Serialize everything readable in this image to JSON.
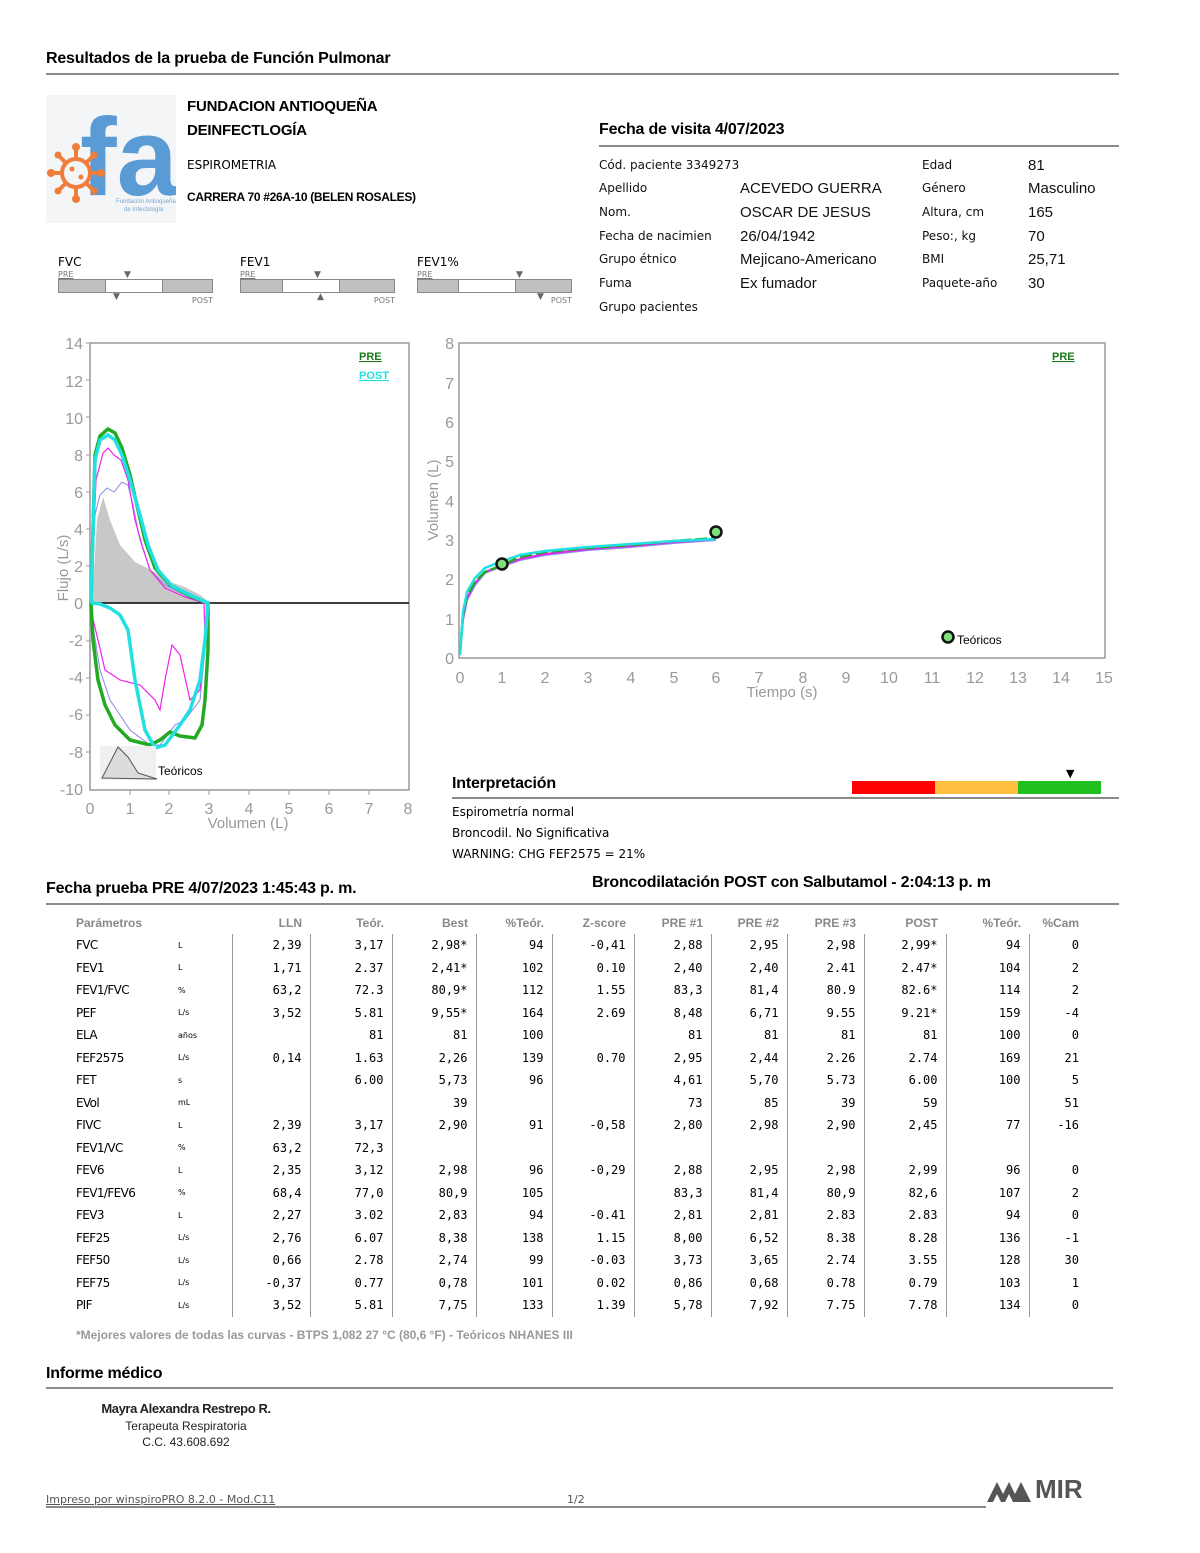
{
  "report": {
    "title": "Resultados de la prueba de Función Pulmonar"
  },
  "institution": {
    "name_line1": "FUNDACION ANTIOQUEÑA",
    "name_line2": "DEINFECTLOGÍA",
    "service": "ESPIROMETRIA",
    "address": "CARRERA 70 #26A-10 (BELEN ROSALES)",
    "logo_text": "fai",
    "logo_caption": "Fundación Antioqueña de Infectología"
  },
  "visit": {
    "title": "Fecha de visita 4/07/2023",
    "patient_code": "Cód. paciente 3349273",
    "left_fields": [
      {
        "label": "Apellido",
        "value": "ACEVEDO GUERRA"
      },
      {
        "label": "Nom.",
        "value": "OSCAR DE JESUS"
      },
      {
        "label": "Fecha de nacimien",
        "value": "26/04/1942"
      },
      {
        "label": "Grupo étnico",
        "value": "Mejicano-Americano"
      },
      {
        "label": "Fuma",
        "value": "Ex fumador"
      },
      {
        "label": "Grupo pacientes",
        "value": ""
      }
    ],
    "right_fields": [
      {
        "label": "Edad",
        "value": "81"
      },
      {
        "label": "Género",
        "value": "Masculino"
      },
      {
        "label": "Altura, cm",
        "value": "165"
      },
      {
        "label": "Peso:, kg",
        "value": "70"
      },
      {
        "label": "BMI",
        "value": "25,71"
      },
      {
        "label": "Paquete-año",
        "value": "30"
      }
    ]
  },
  "mini_bars": [
    {
      "name": "FVC",
      "pre_label": "PRE",
      "post_label": "POST"
    },
    {
      "name": "FEV1",
      "pre_label": "PRE",
      "post_label": "POST"
    },
    {
      "name": "FEV1%",
      "pre_label": "PRE",
      "post_label": "POST"
    }
  ],
  "chart_data": [
    {
      "type": "line",
      "title": "Flujo-Volumen",
      "xlabel": "Volumen (L)",
      "ylabel": "Flujo (L/s)",
      "xlim": [
        0,
        8
      ],
      "ylim": [
        -10,
        14
      ],
      "x_ticks": [
        "0",
        "1",
        "2",
        "3",
        "4",
        "5",
        "6",
        "7",
        "8"
      ],
      "y_ticks": [
        "14",
        "12",
        "10",
        "8",
        "6",
        "4",
        "2",
        "0",
        "-2",
        "-4",
        "-6",
        "-8",
        "-10"
      ],
      "legend": [
        "PRE",
        "POST"
      ],
      "annotation": "Teóricos",
      "series": [
        {
          "name": "PRE best (green)",
          "color": "#22aa22",
          "x": [
            0,
            0.1,
            0.2,
            0.35,
            0.5,
            0.7,
            1.0,
            1.3,
            1.6,
            2.0,
            2.5,
            2.9,
            3.0
          ],
          "y": [
            0,
            8.5,
            9.3,
            9.4,
            9.0,
            8.0,
            5.5,
            3.5,
            2.3,
            1.3,
            0.5,
            0.1,
            0
          ]
        },
        {
          "name": "POST (cyan)",
          "color": "#22e0e0",
          "x": [
            0,
            0.1,
            0.2,
            0.35,
            0.5,
            0.7,
            1.0,
            1.3,
            1.6,
            2.0,
            2.5,
            2.9,
            3.0
          ],
          "y": [
            0,
            8.2,
            9.0,
            9.1,
            8.8,
            7.8,
            5.7,
            3.8,
            2.5,
            1.4,
            0.6,
            0.1,
            0
          ]
        },
        {
          "name": "PRE #2 (magenta)",
          "color": "#ee22ee",
          "x": [
            0,
            0.1,
            0.3,
            0.5,
            0.7,
            1.0,
            1.3,
            1.8,
            2.4,
            2.9
          ],
          "y": [
            0,
            7.5,
            8.4,
            8.0,
            7.8,
            6.2,
            3.7,
            2.0,
            0.6,
            0
          ]
        },
        {
          "name": "PRE #1 (blue)",
          "color": "#8888ee",
          "x": [
            0,
            0.1,
            0.3,
            0.5,
            0.8,
            1.0,
            1.3,
            1.8,
            2.4,
            2.9
          ],
          "y": [
            0,
            5.8,
            6.1,
            6.0,
            6.5,
            6.3,
            3.8,
            2.0,
            0.6,
            0
          ]
        },
        {
          "name": "Teóricos",
          "color": "#c8c8c8",
          "x": [
            0,
            0.3,
            0.5,
            1.0,
            1.5,
            2.0,
            2.5,
            3.0
          ],
          "y": [
            0,
            5.8,
            4.3,
            3.4,
            2.4,
            1.6,
            0.8,
            0
          ]
        }
      ]
    },
    {
      "type": "line",
      "title": "Volumen-Tiempo",
      "xlabel": "Tiempo (s)",
      "ylabel": "Volumen (L)",
      "xlim": [
        0,
        15
      ],
      "ylim": [
        0,
        8
      ],
      "x_ticks": [
        "0",
        "1",
        "2",
        "3",
        "4",
        "5",
        "6",
        "7",
        "8",
        "9",
        "10",
        "11",
        "12",
        "13",
        "14",
        "15"
      ],
      "y_ticks": [
        "8",
        "7",
        "6",
        "5",
        "4",
        "3",
        "2",
        "1",
        "0"
      ],
      "legend": [
        "PRE"
      ],
      "annotation": "Teóricos",
      "series": [
        {
          "name": "PRE/POST curves",
          "color": "#22e0e0",
          "x": [
            0,
            0.1,
            0.2,
            0.4,
            0.6,
            1.0,
            1.5,
            2.0,
            3.0,
            4.0,
            5.0,
            6.0
          ],
          "y": [
            0,
            1.0,
            1.5,
            1.95,
            2.2,
            2.45,
            2.55,
            2.65,
            2.78,
            2.85,
            2.93,
            3.0
          ]
        },
        {
          "name": "Teóricos points",
          "color": "#7de07d",
          "x": [
            1,
            6
          ],
          "y": [
            2.37,
            3.17
          ]
        }
      ]
    }
  ],
  "interpretation": {
    "title": "Interpretación",
    "lines": [
      "Espirometría normal",
      "Broncodil. No Significativa",
      "WARNING: CHG FEF2575 = 21%"
    ],
    "scale_colors": [
      "#ff0000",
      "#ffbf3f",
      "#1fbf1f"
    ]
  },
  "bronchodilation": {
    "title": "Broncodilatación POST con Salbutamol - 2:04:13 p. m"
  },
  "test": {
    "title": "Fecha prueba PRE 4/07/2023   1:45:43 p. m."
  },
  "table": {
    "headers": [
      "Parámetros",
      "",
      "LLN",
      "Teór.",
      "Best",
      "%Teór.",
      "Z-score",
      "PRE #1",
      "PRE #2",
      "PRE #3",
      "POST",
      "%Teór.",
      "%Cam"
    ],
    "rows": [
      [
        "FVC",
        "L",
        "2,39",
        "3,17",
        "2,98*",
        "94",
        "-0,41",
        "2,88",
        "2,95",
        "2,98",
        "2,99*",
        "94",
        "0"
      ],
      [
        "FEV1",
        "L",
        "1,71",
        "2.37",
        "2,41*",
        "102",
        "0.10",
        "2,40",
        "2,40",
        "2.41",
        "2.47*",
        "104",
        "2"
      ],
      [
        "FEV1/FVC",
        "%",
        "63,2",
        "72.3",
        "80,9*",
        "112",
        "1.55",
        "83,3",
        "81,4",
        "80.9",
        "82.6*",
        "114",
        "2"
      ],
      [
        "PEF",
        "L/s",
        "3,52",
        "5.81",
        "9,55*",
        "164",
        "2.69",
        "8,48",
        "6,71",
        "9.55",
        "9.21*",
        "159",
        "-4"
      ],
      [
        "ELA",
        "años",
        "",
        "81",
        "81",
        "100",
        "",
        "81",
        "81",
        "81",
        "81",
        "100",
        "0"
      ],
      [
        "FEF2575",
        "L/s",
        "0,14",
        "1.63",
        "2,26",
        "139",
        "0.70",
        "2,95",
        "2,44",
        "2.26",
        "2.74",
        "169",
        "21"
      ],
      [
        "FET",
        "s",
        "",
        "6.00",
        "5,73",
        "96",
        "",
        "4,61",
        "5,70",
        "5.73",
        "6.00",
        "100",
        "5"
      ],
      [
        "EVol",
        "mL",
        "",
        "",
        "39",
        "",
        "",
        "73",
        "85",
        "39",
        "59",
        "",
        "51"
      ],
      [
        "FIVC",
        "L",
        "2,39",
        "3,17",
        "2,90",
        "91",
        "-0,58",
        "2,80",
        "2,98",
        "2,90",
        "2,45",
        "77",
        "-16"
      ],
      [
        "FEV1/VC",
        "%",
        "63,2",
        "72,3",
        "",
        "",
        "",
        "",
        "",
        "",
        "",
        "",
        ""
      ],
      [
        "FEV6",
        "L",
        "2,35",
        "3,12",
        "2,98",
        "96",
        "-0,29",
        "2,88",
        "2,95",
        "2,98",
        "2,99",
        "96",
        "0"
      ],
      [
        "FEV1/FEV6",
        "%",
        "68,4",
        "77,0",
        "80,9",
        "105",
        "",
        "83,3",
        "81,4",
        "80,9",
        "82,6",
        "107",
        "2"
      ],
      [
        "FEV3",
        "L",
        "2,27",
        "3.02",
        "2,83",
        "94",
        "-0.41",
        "2,81",
        "2,81",
        "2.83",
        "2.83",
        "94",
        "0"
      ],
      [
        "FEF25",
        "L/s",
        "2,76",
        "6.07",
        "8,38",
        "138",
        "1.15",
        "8,00",
        "6,52",
        "8.38",
        "8.28",
        "136",
        "-1"
      ],
      [
        "FEF50",
        "L/s",
        "0,66",
        "2.78",
        "2,74",
        "99",
        "-0.03",
        "3,73",
        "3,65",
        "2.74",
        "3.55",
        "128",
        "30"
      ],
      [
        "FEF75",
        "L/s",
        "-0,37",
        "0.77",
        "0,78",
        "101",
        "0.02",
        "0,86",
        "0,68",
        "0.78",
        "0.79",
        "103",
        "1"
      ],
      [
        "PIF",
        "L/s",
        "3,52",
        "5.81",
        "7,75",
        "133",
        "1.39",
        "5,78",
        "7,92",
        "7.75",
        "7.78",
        "134",
        "0"
      ]
    ],
    "footnote": "*Mejores valores de todas las curvas - BTPS  1,082  27 °C  (80,6 °F) - Teóricos NHANES III"
  },
  "medical_report": {
    "title": "Informe médico",
    "signature": [
      "Mayra Alexandra Restrepo R.",
      "Terapeuta Respiratoria",
      "C.C. 43.608.692"
    ]
  },
  "footer": {
    "printed_by": "Impreso por winspiroPRO 8.2.0 - Mod.C11",
    "page": "1/2",
    "brand": "MIR"
  }
}
